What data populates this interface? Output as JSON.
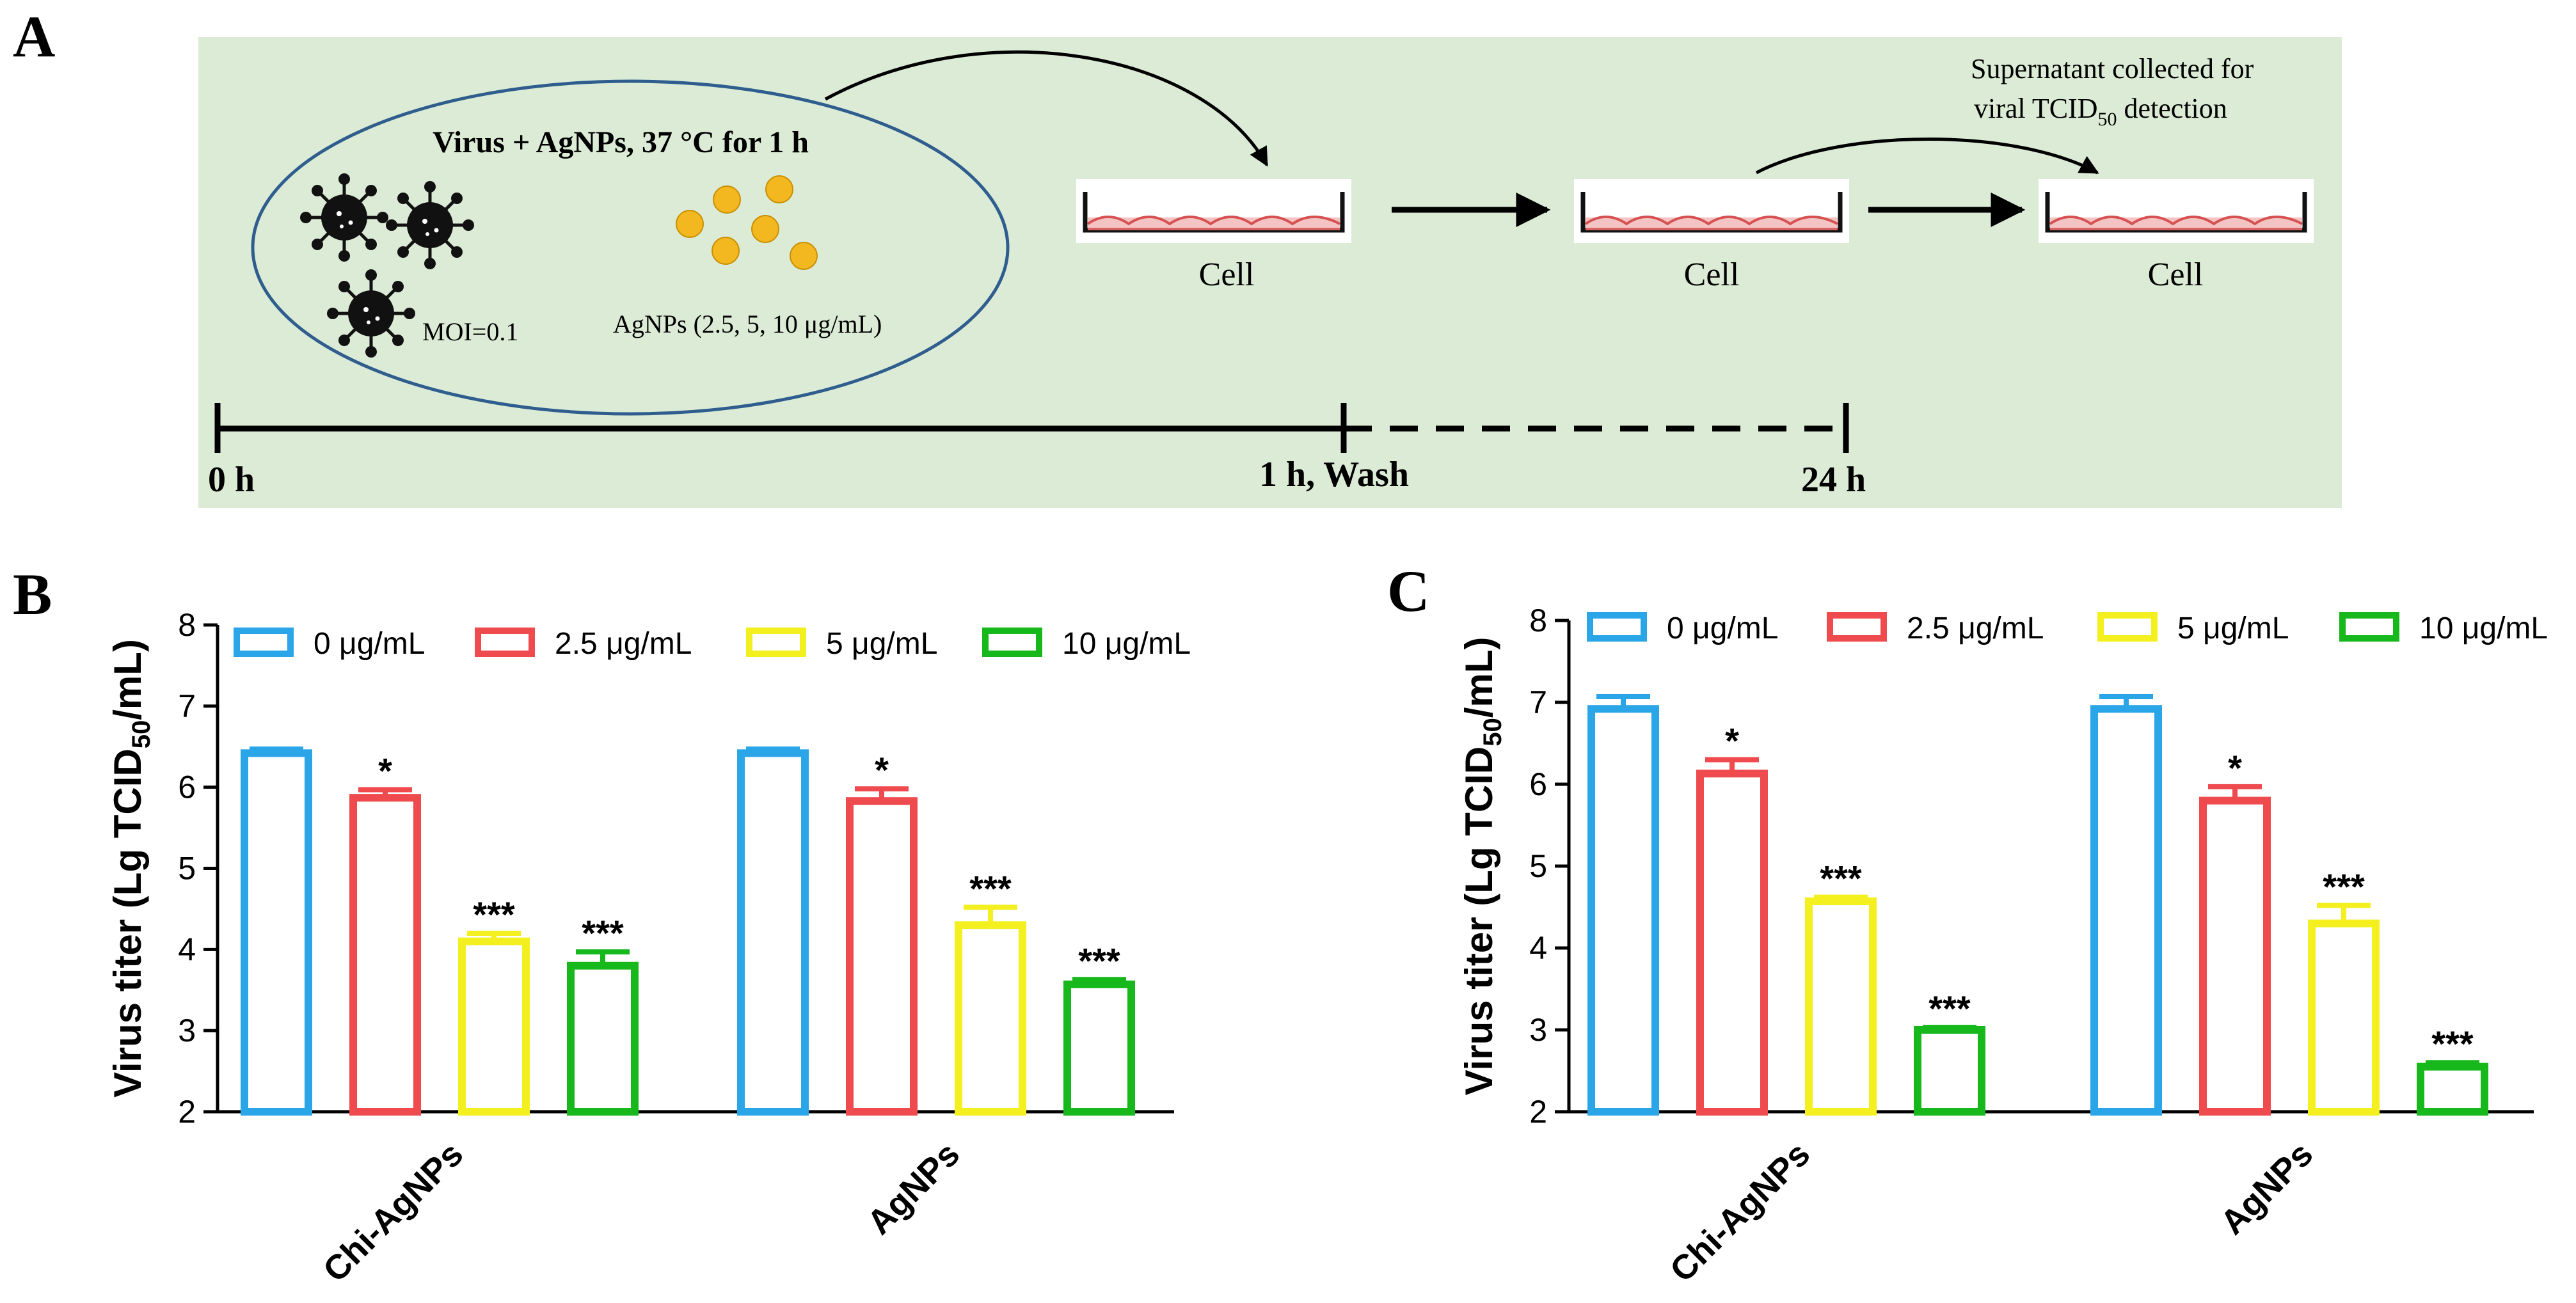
{
  "panel_labels": {
    "a": "A",
    "b": "B",
    "c": "C"
  },
  "schematic": {
    "ellipse_title": "Virus + AgNPs, 37 °C for 1 h",
    "moi": "MOI=0.1",
    "agnps": "AgNPs (2.5, 5, 10 μg/mL)",
    "cell_label": "Cell",
    "supernatant_line1": "Supernatant collected for",
    "supernatant_line2_pre": "viral TCID",
    "supernatant_line2_sub": "50",
    "supernatant_line2_post": " detection",
    "time_0": "0 h",
    "time_1": "1 h, Wash",
    "time_24": "24 h",
    "colors": {
      "background": "#dcebd5",
      "ellipse": "#2e5d8e",
      "cell_fill": "#f4c3c3",
      "cell_edge": "#d65151",
      "agnp": "#f3b820"
    }
  },
  "chart_data": [
    {
      "type": "bar",
      "panel": "B",
      "categories": [
        "Chi-AgNPs",
        "AgNPs"
      ],
      "ylabel_pre": "Virus titer (Lg TCID",
      "ylabel_sub": "50",
      "ylabel_post": "/mL)",
      "ylim": [
        2,
        8
      ],
      "yticks": [
        "2",
        "3",
        "4",
        "5",
        "6",
        "7",
        "8"
      ],
      "series": [
        {
          "name": "0 μg/mL",
          "color": "#2aa6e8",
          "values": [
            6.42,
            6.42
          ],
          "errors": [
            0.05,
            0.05
          ],
          "sig": [
            "",
            ""
          ]
        },
        {
          "name": "2.5 μg/mL",
          "color": "#ef4a4d",
          "values": [
            5.87,
            5.83
          ],
          "errors": [
            0.1,
            0.15
          ],
          "sig": [
            "*",
            "*"
          ]
        },
        {
          "name": "5 μg/mL",
          "color": "#f4ef1e",
          "values": [
            4.1,
            4.3
          ],
          "errors": [
            0.1,
            0.22
          ],
          "sig": [
            "***",
            "***"
          ]
        },
        {
          "name": "10 μg/mL",
          "color": "#16b81c",
          "values": [
            3.8,
            3.57
          ],
          "errors": [
            0.17,
            0.06
          ],
          "sig": [
            "***",
            "***"
          ]
        }
      ]
    },
    {
      "type": "bar",
      "panel": "C",
      "categories": [
        "Chi-AgNPs",
        "AgNPs"
      ],
      "ylabel_pre": "Virus titer (Lg TCID",
      "ylabel_sub": "50",
      "ylabel_post": "/mL)",
      "ylim": [
        2,
        8
      ],
      "yticks": [
        "2",
        "3",
        "4",
        "5",
        "6",
        "7",
        "8"
      ],
      "series": [
        {
          "name": "0 μg/mL",
          "color": "#2aa6e8",
          "values": [
            6.92,
            6.92
          ],
          "errors": [
            0.15,
            0.15
          ],
          "sig": [
            "",
            ""
          ]
        },
        {
          "name": "2.5 μg/mL",
          "color": "#ef4a4d",
          "values": [
            6.13,
            5.8
          ],
          "errors": [
            0.17,
            0.17
          ],
          "sig": [
            "*",
            "*"
          ]
        },
        {
          "name": "5 μg/mL",
          "color": "#f4ef1e",
          "values": [
            4.57,
            4.3
          ],
          "errors": [
            0.05,
            0.22
          ],
          "sig": [
            "***",
            "***"
          ]
        },
        {
          "name": "10 μg/mL",
          "color": "#16b81c",
          "values": [
            3.0,
            2.55
          ],
          "errors": [
            0.03,
            0.05
          ],
          "sig": [
            "***",
            "***"
          ]
        }
      ]
    }
  ]
}
